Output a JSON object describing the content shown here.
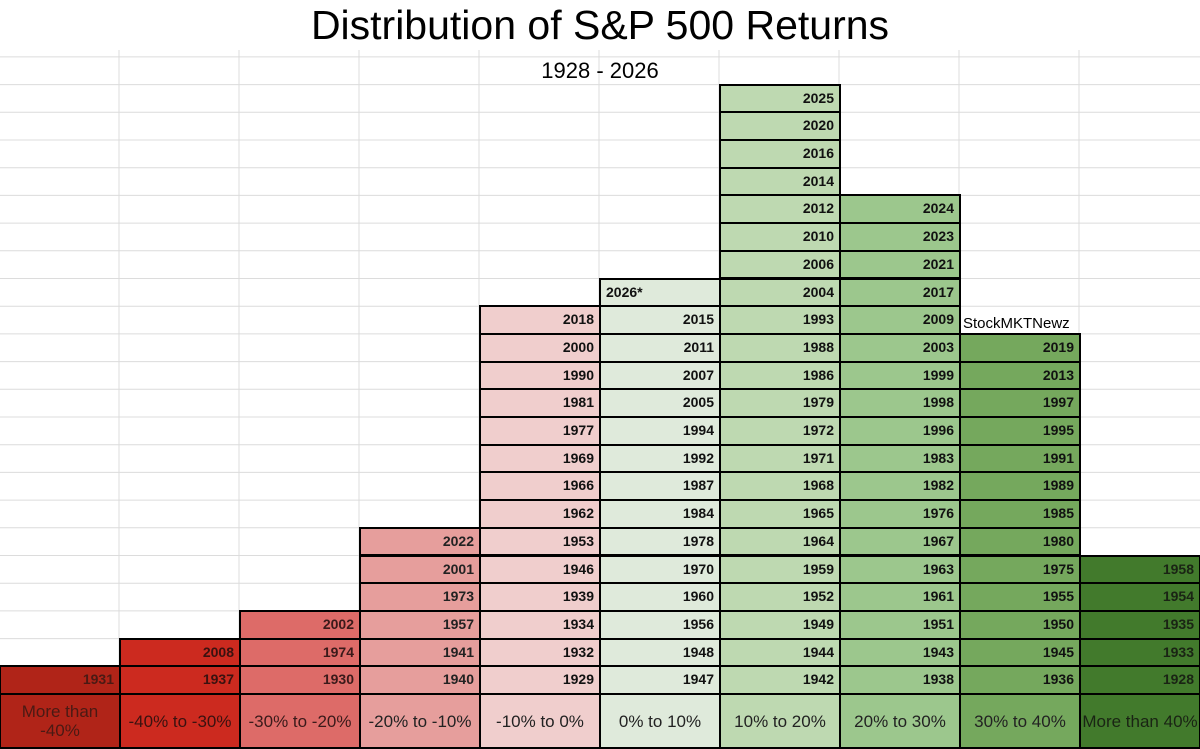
{
  "chart_data": {
    "type": "table",
    "title": "Distribution of S&P 500 Returns",
    "subtitle": "1928 - 2026",
    "watermark": "StockMKTNewz",
    "bins": [
      {
        "label": "More than -40%",
        "color": "#b02418",
        "text_color": "#4a1a14",
        "years": [
          "1931"
        ]
      },
      {
        "label": "-40% to -30%",
        "color": "#cc2a1f",
        "text_color": "#3a1210",
        "years": [
          "1937",
          "2008"
        ]
      },
      {
        "label": "-30% to -20%",
        "color": "#dd6b68",
        "text_color": "#3a1a1a",
        "years": [
          "1930",
          "1974",
          "2002"
        ]
      },
      {
        "label": "-20% to -10%",
        "color": "#e69e9c",
        "text_color": "#222222",
        "years": [
          "1940",
          "1941",
          "1957",
          "1973",
          "2001",
          "2022"
        ]
      },
      {
        "label": "-10% to 0%",
        "color": "#f0cecd",
        "text_color": "#222222",
        "years": [
          "1929",
          "1932",
          "1934",
          "1939",
          "1946",
          "1953",
          "1962",
          "1966",
          "1969",
          "1977",
          "1981",
          "1990",
          "2000",
          "2018"
        ]
      },
      {
        "label": "0% to 10%",
        "color": "#dfeadb",
        "text_color": "#222222",
        "years": [
          "1947",
          "1948",
          "1956",
          "1960",
          "1970",
          "1978",
          "1984",
          "1987",
          "1992",
          "1994",
          "2005",
          "2007",
          "2011",
          "2015",
          "2026*"
        ]
      },
      {
        "label": "10% to 20%",
        "color": "#bed9b1",
        "text_color": "#222222",
        "years": [
          "1942",
          "1944",
          "1949",
          "1952",
          "1959",
          "1964",
          "1965",
          "1968",
          "1971",
          "1972",
          "1979",
          "1986",
          "1988",
          "1993",
          "2004",
          "2006",
          "2010",
          "2012",
          "2014",
          "2016",
          "2020",
          "2025"
        ]
      },
      {
        "label": "20% to 30%",
        "color": "#9cc78d",
        "text_color": "#222222",
        "years": [
          "1938",
          "1943",
          "1951",
          "1961",
          "1963",
          "1967",
          "1976",
          "1982",
          "1983",
          "1996",
          "1998",
          "1999",
          "2003",
          "2009",
          "2017",
          "2021",
          "2023",
          "2024"
        ]
      },
      {
        "label": "30% to 40%",
        "color": "#75a85d",
        "text_color": "#222222",
        "years": [
          "1936",
          "1945",
          "1950",
          "1955",
          "1975",
          "1980",
          "1985",
          "1989",
          "1991",
          "1995",
          "1997",
          "2013",
          "2019"
        ]
      },
      {
        "label": "More than 40%",
        "color": "#427a2c",
        "text_color": "#1a2414",
        "years": [
          "1928",
          "1933",
          "1935",
          "1954",
          "1958"
        ]
      }
    ]
  }
}
